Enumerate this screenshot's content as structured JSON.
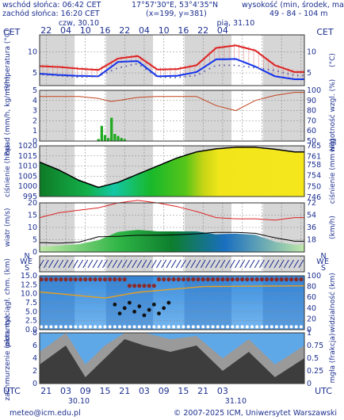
{
  "header": {
    "sunrise": "wschód słońca: 06:42 CET",
    "sunset": "zachód słońca: 16:20 CET",
    "coords": "17°57'30\"E, 53°4'35\"N",
    "grid": "(x=199, y=381)",
    "height_label": "wysokość (min, środek, max)",
    "height_values": "49 - 84 - 104 m",
    "tz": "CET",
    "date1": "czw, 30.10",
    "date2": "pią, 31.10"
  },
  "footer": {
    "email": "meteo@icm.edu.pl",
    "copyright": "© 2007-2025 ICM, Uniwersytet Warszawski",
    "tz": "UTC",
    "date1": "30.10",
    "date2": "31.10"
  },
  "top_hours": [
    "22",
    "04",
    "10",
    "16",
    "22",
    "04",
    "10",
    "16",
    "22",
    "04"
  ],
  "bottom_hours": [
    "21",
    "03",
    "09",
    "15",
    "21",
    "03",
    "09",
    "15",
    "21",
    "03"
  ],
  "colors": {
    "axis_text": "#1c2f8f",
    "temp_max": "#dd2222",
    "temp_mean": "#1133ee",
    "humidity": "#c0441f",
    "precip": "#22aa22",
    "wind": "#dd2222",
    "night_shade": "#d6d6d6",
    "sky": "#3b8fe0"
  },
  "chart_data": [
    {
      "type": "line",
      "name": "temperatura",
      "ylabel": "temperatura (°C)",
      "ylabel_right": "(°C)",
      "yticks": [
        5,
        10
      ],
      "ylim": [
        2,
        14
      ],
      "x_hours": [
        0,
        6,
        12,
        18,
        24,
        30,
        36,
        42,
        48,
        54,
        60,
        66,
        72,
        78
      ],
      "series": [
        {
          "values": [
            6.6,
            6.4,
            6.0,
            5.7,
            8.4,
            9.0,
            5.8,
            5.9,
            6.8,
            10.9,
            11.5,
            10.3,
            6.8,
            5.2
          ]
        },
        {
          "values": [
            4.8,
            4.5,
            4.3,
            4.2,
            7.6,
            7.8,
            4.2,
            4.3,
            5.2,
            8.2,
            8.3,
            6.5,
            4.2,
            3.5
          ]
        },
        {
          "values": [
            4.6,
            4.3,
            4.0,
            4.2,
            6.2,
            7.2,
            4.0,
            3.9,
            4.4,
            6.8,
            6.8,
            6.2,
            5.6,
            4.4
          ]
        }
      ]
    },
    {
      "type": "bar",
      "name": "opad",
      "ylabel": "opad (mm/h, kg/m²/h)",
      "ylabel_right": "wilgotność wzgl. (%)",
      "yticks": [
        0,
        1,
        2,
        3,
        4,
        5
      ],
      "yticks_right": [
        50,
        60,
        70,
        80,
        90,
        100
      ],
      "ylim": [
        0,
        5
      ],
      "ylim_right": [
        50,
        100
      ],
      "x_hours": [
        18,
        19,
        20,
        21,
        22,
        23,
        24,
        25,
        26
      ],
      "values": [
        0.2,
        1.5,
        0.6,
        0.3,
        2.3,
        0.7,
        0.5,
        0.3,
        0.2
      ],
      "humidity_x_hours": [
        0,
        12,
        18,
        22,
        30,
        36,
        48,
        54,
        60,
        66,
        72,
        78
      ],
      "humidity": [
        94,
        94,
        92,
        89,
        93,
        94,
        94,
        85,
        80,
        90,
        95,
        98
      ]
    },
    {
      "type": "area",
      "name": "ciśnienie",
      "ylabel": "ciśnienie (hPa)",
      "ylabel_right": "ciśnienie (mm Hg)",
      "yticks": [
        995,
        1000,
        1005,
        1010,
        1015,
        1020
      ],
      "yticks_right": [
        746,
        750,
        754,
        758,
        761,
        765
      ],
      "ylim": [
        995,
        1020
      ],
      "x_hours": [
        0,
        6,
        12,
        18,
        24,
        30,
        36,
        42,
        48,
        54,
        60,
        66,
        72,
        78
      ],
      "values": [
        1012,
        1008,
        1003,
        999.5,
        1002,
        1006,
        1010,
        1014,
        1017,
        1018.5,
        1019.3,
        1019.3,
        1018.3,
        1017
      ]
    },
    {
      "type": "line",
      "name": "wiatr",
      "ylabel": "wiatr (m/s)",
      "ylabel_right": "(km/h)",
      "yticks": [
        0,
        5,
        10,
        15,
        20
      ],
      "yticks_right": [
        18,
        36,
        54,
        72
      ],
      "ylim": [
        0,
        20
      ],
      "x_hours": [
        0,
        6,
        12,
        18,
        24,
        30,
        36,
        42,
        48,
        54,
        60,
        66,
        72,
        78
      ],
      "series": [
        {
          "values": [
            3.8,
            3.6,
            4.0,
            6.2,
            6.4,
            6.8,
            6.8,
            7.0,
            7.4,
            8.0,
            8.0,
            7.6,
            5.8,
            4.4
          ]
        },
        {
          "values": [
            2.2,
            2.6,
            3.2,
            4.8,
            8.2,
            9.0,
            8.4,
            8.4,
            8.4,
            7.2,
            7.5,
            7.0,
            4.2,
            3.0
          ]
        },
        {
          "values": [
            14,
            16,
            17,
            18,
            20,
            21,
            20,
            18.5,
            16.5,
            14,
            13.5,
            13.5,
            13,
            14
          ]
        }
      ]
    },
    {
      "type": "scatter",
      "name": "pion. rozciągł. chm.",
      "ylabel": "pion. rozciągł. chm. (km)",
      "ylabel_right": "widzialność (km)",
      "yticks": [
        0.0,
        2.5,
        5.0,
        7.5,
        10.0,
        12.5,
        15.0
      ],
      "yticks_right": [
        0,
        20,
        40,
        60,
        80,
        100
      ],
      "ylim": [
        0,
        15
      ],
      "ylim_right": [
        0,
        100
      ]
    },
    {
      "type": "area",
      "name": "zachmurzenie",
      "ylabel": "zachmurzenie (oktanty)",
      "ylabel_right": "mgła (frakcja)",
      "yticks": [
        0,
        2,
        4,
        6,
        8
      ],
      "yticks_right": [
        0,
        0.25,
        0.5,
        0.75,
        1
      ],
      "ylim": [
        0,
        8
      ]
    }
  ]
}
